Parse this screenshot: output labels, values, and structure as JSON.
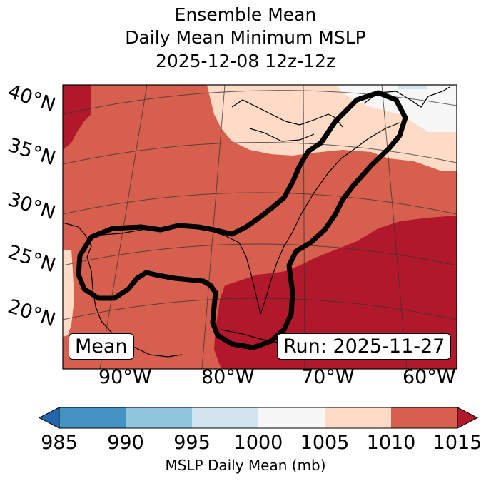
{
  "title": {
    "line1": "Ensemble Mean",
    "line2": "Daily Mean Minimum MSLP",
    "line3": "2025-12-08 12z-12z"
  },
  "map": {
    "lat_labels": [
      "40°N",
      "35°N",
      "30°N",
      "25°N",
      "20°N"
    ],
    "lon_labels": [
      "90°W",
      "80°W",
      "70°W",
      "60°W"
    ],
    "mean_label": "Mean",
    "run_label": "Run: 2025-11-27",
    "contour_color": "#000000"
  },
  "colorbar": {
    "ticks": [
      "985",
      "990",
      "995",
      "1000",
      "1005",
      "1010",
      "1015"
    ],
    "label": "MSLP Daily Mean (mb)",
    "colors": [
      "#2166ac",
      "#4393c3",
      "#92c5de",
      "#d1e5f0",
      "#f7f7f7",
      "#fddbc7",
      "#d6604d",
      "#b2182b"
    ],
    "extend": "both"
  },
  "palette": {
    "p1015": "#b2182b",
    "p1010": "#d6604d",
    "p1005": "#fddbc7",
    "p1000": "#f7f7f7",
    "p995": "#d1e5f0"
  }
}
